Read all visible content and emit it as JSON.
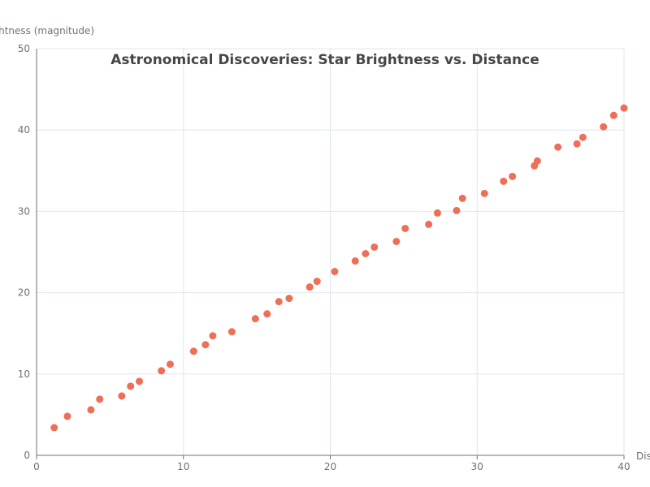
{
  "chart_data": {
    "type": "scatter",
    "title": "Astronomical Discoveries: Star Brightness vs. Distance",
    "xlabel": "Distance",
    "ylabel": "Brightness (magnitude)",
    "xlim": [
      0,
      40
    ],
    "ylim": [
      0,
      50
    ],
    "x_ticks": [
      0,
      10,
      20,
      30,
      40
    ],
    "y_ticks": [
      0,
      10,
      20,
      30,
      40,
      50
    ],
    "grid": true,
    "color": "#ee6f57",
    "points": [
      {
        "x": 1.2,
        "y": 3.4
      },
      {
        "x": 2.1,
        "y": 4.8
      },
      {
        "x": 3.7,
        "y": 5.6
      },
      {
        "x": 4.3,
        "y": 6.9
      },
      {
        "x": 5.8,
        "y": 7.3
      },
      {
        "x": 6.4,
        "y": 8.5
      },
      {
        "x": 7.0,
        "y": 9.1
      },
      {
        "x": 8.5,
        "y": 10.4
      },
      {
        "x": 9.1,
        "y": 11.2
      },
      {
        "x": 10.7,
        "y": 12.8
      },
      {
        "x": 11.5,
        "y": 13.6
      },
      {
        "x": 12.0,
        "y": 14.7
      },
      {
        "x": 13.3,
        "y": 15.2
      },
      {
        "x": 14.9,
        "y": 16.8
      },
      {
        "x": 15.7,
        "y": 17.4
      },
      {
        "x": 16.5,
        "y": 18.9
      },
      {
        "x": 17.2,
        "y": 19.3
      },
      {
        "x": 18.6,
        "y": 20.7
      },
      {
        "x": 19.1,
        "y": 21.4
      },
      {
        "x": 20.3,
        "y": 22.6
      },
      {
        "x": 21.7,
        "y": 23.9
      },
      {
        "x": 22.4,
        "y": 24.8
      },
      {
        "x": 23.0,
        "y": 25.6
      },
      {
        "x": 24.5,
        "y": 26.3
      },
      {
        "x": 25.1,
        "y": 27.9
      },
      {
        "x": 26.7,
        "y": 28.4
      },
      {
        "x": 27.3,
        "y": 29.8
      },
      {
        "x": 28.6,
        "y": 30.1
      },
      {
        "x": 29.0,
        "y": 31.6
      },
      {
        "x": 30.5,
        "y": 32.2
      },
      {
        "x": 31.8,
        "y": 33.7
      },
      {
        "x": 32.4,
        "y": 34.3
      },
      {
        "x": 33.9,
        "y": 35.6
      },
      {
        "x": 34.1,
        "y": 36.2
      },
      {
        "x": 35.5,
        "y": 37.9
      },
      {
        "x": 36.8,
        "y": 38.3
      },
      {
        "x": 37.2,
        "y": 39.1
      },
      {
        "x": 38.6,
        "y": 40.4
      },
      {
        "x": 39.3,
        "y": 41.8
      },
      {
        "x": 40.0,
        "y": 42.7
      }
    ]
  }
}
